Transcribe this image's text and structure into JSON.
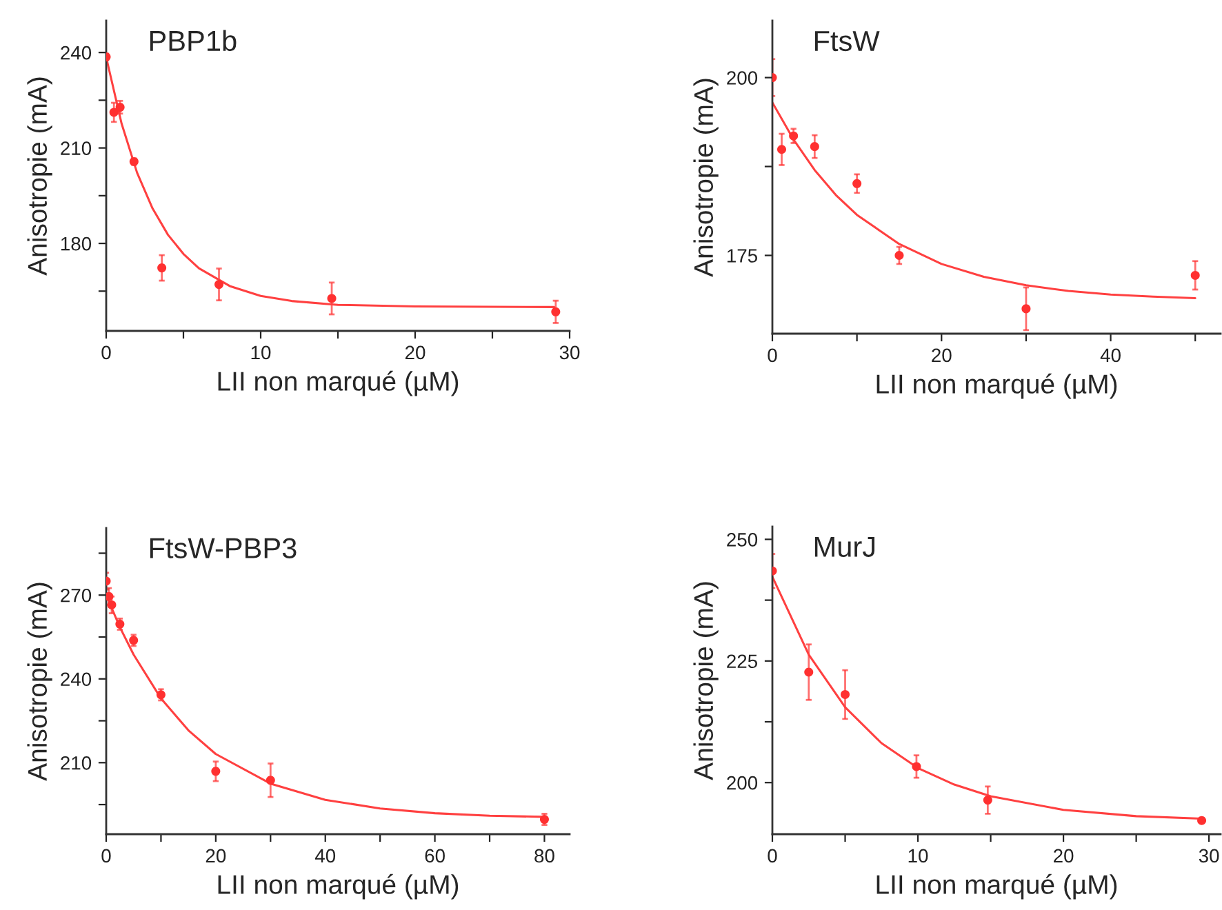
{
  "chart_data": [
    {
      "type": "scatter",
      "title": "PBP1b",
      "xlabel": "LII non marqué (µM)",
      "ylabel": "Anisotropie (mA)",
      "xlim": [
        0,
        30
      ],
      "xticks": [
        0,
        {
          "value": 5,
          "label": null
        },
        10,
        {
          "value": 15,
          "label": null
        },
        20,
        {
          "value": 25,
          "label": null
        },
        30
      ],
      "ylim": [
        152.5,
        250
      ],
      "yticks": [
        {
          "value": 165,
          "label": null
        },
        180,
        {
          "value": 195,
          "label": null
        },
        210,
        {
          "value": 225,
          "label": null
        },
        240
      ],
      "grid": false,
      "legend": false,
      "series": [
        {
          "color": "#ff3030",
          "marker": "circle",
          "x": [
            0,
            0.5,
            0.9,
            1.8,
            3.6,
            7.3,
            14.6,
            29.1
          ],
          "values": [
            238.6,
            221.2,
            222.8,
            205.7,
            172.3,
            167.1,
            162.7,
            158.5
          ],
          "errors": [
            1,
            3,
            2,
            1,
            4,
            5,
            5,
            3.5
          ]
        },
        {
          "type": "line",
          "color": "#ff4040",
          "marker": "none",
          "line_style": "solid",
          "x": [
            0,
            1,
            2,
            3,
            4,
            5,
            6,
            8,
            10,
            12,
            15,
            20,
            29
          ],
          "values": [
            238.5,
            217.6,
            202.2,
            191.0,
            182.7,
            176.7,
            172.2,
            166.6,
            163.5,
            161.9,
            160.7,
            160.2,
            160.0
          ]
        }
      ]
    },
    {
      "type": "scatter",
      "title": "FtsW",
      "xlabel": "LII non marqué (µM)",
      "ylabel": "Anisotropie (mA)",
      "xlim": [
        0,
        53
      ],
      "xticks": [
        0,
        {
          "value": 10,
          "label": null
        },
        20,
        {
          "value": 30,
          "label": null
        },
        40,
        {
          "value": 50,
          "label": null
        }
      ],
      "ylim": [
        164,
        208
      ],
      "yticks": [
        175,
        {
          "value": 187.5,
          "label": null
        },
        200
      ],
      "grid": false,
      "legend": false,
      "series": [
        {
          "color": "#ff3030",
          "marker": "circle",
          "x": [
            0,
            1.1,
            2.5,
            5,
            10,
            15,
            30,
            50
          ],
          "values": [
            200,
            189.9,
            191.8,
            190.3,
            185.1,
            175.0,
            167.5,
            172.2
          ],
          "errors": [
            2.6,
            2.2,
            1,
            1.6,
            1.3,
            1.2,
            3,
            2
          ]
        },
        {
          "type": "line",
          "color": "#ff4040",
          "marker": "none",
          "line_style": "solid",
          "x": [
            0,
            2.5,
            5,
            7.5,
            10,
            15,
            20,
            25,
            30,
            35,
            40,
            45,
            50
          ],
          "values": [
            196.5,
            191.3,
            187.0,
            183.5,
            180.7,
            176.6,
            173.8,
            172.0,
            170.8,
            170.0,
            169.5,
            169.2,
            169.0
          ]
        }
      ]
    },
    {
      "type": "scatter",
      "title": "FtsW-PBP3",
      "xlabel": "LII non marqué (µM)",
      "ylabel": "Anisotropie (mA)",
      "xlim": [
        0,
        84.6
      ],
      "xticks": [
        0,
        {
          "value": 10,
          "label": null
        },
        20,
        {
          "value": 30,
          "label": null
        },
        40,
        {
          "value": 50,
          "label": null
        },
        60,
        {
          "value": 70,
          "label": null
        },
        80
      ],
      "ylim": [
        184.4,
        294
      ],
      "yticks": [
        {
          "value": 195,
          "label": null
        },
        210,
        {
          "value": 225,
          "label": null
        },
        240,
        {
          "value": 255,
          "label": null
        },
        270,
        {
          "value": 285,
          "label": null
        }
      ],
      "grid": false,
      "legend": false,
      "series": [
        {
          "color": "#ff3030",
          "marker": "circle",
          "x": [
            0,
            0.5,
            1,
            2.5,
            5,
            10,
            20,
            30,
            80
          ],
          "values": [
            275.0,
            269.5,
            266.5,
            259.6,
            253.8,
            234.3,
            206.9,
            203.7,
            189.7
          ],
          "errors": [
            3,
            3,
            3,
            2,
            2,
            2,
            3.5,
            6,
            2
          ]
        },
        {
          "type": "line",
          "color": "#ff4040",
          "marker": "none",
          "line_style": "solid",
          "x": [
            0,
            2.5,
            5,
            10,
            15,
            20,
            30,
            40,
            50,
            60,
            70,
            80
          ],
          "values": [
            270,
            258.5,
            248.7,
            233.0,
            221.6,
            213.1,
            202.5,
            196.7,
            193.6,
            191.9,
            191.0,
            190.6
          ]
        }
      ]
    },
    {
      "type": "scatter",
      "title": "MurJ",
      "xlabel": "LII non marqué (µM)",
      "ylabel": "Anisotropie (mA)",
      "xlim": [
        0,
        30.8
      ],
      "xticks": [
        0,
        {
          "value": 5,
          "label": null
        },
        10,
        {
          "value": 15,
          "label": null
        },
        20,
        {
          "value": 25,
          "label": null
        },
        30
      ],
      "ylim": [
        189.4,
        252.6
      ],
      "yticks": [
        200,
        {
          "value": 212.5,
          "label": null
        },
        225,
        {
          "value": 237.5,
          "label": null
        },
        250
      ],
      "grid": false,
      "legend": false,
      "series": [
        {
          "color": "#ff3030",
          "marker": "circle",
          "x": [
            0,
            2.5,
            5,
            9.9,
            14.8,
            29.5
          ],
          "values": [
            243.5,
            222.7,
            218.1,
            203.3,
            196.4,
            192.2
          ],
          "errors": [
            3.5,
            5.7,
            5,
            2.3,
            2.8,
            0.5
          ]
        },
        {
          "type": "line",
          "color": "#ff4040",
          "marker": "none",
          "line_style": "solid",
          "x": [
            0,
            2.5,
            5,
            7.5,
            10,
            12.5,
            15,
            20,
            25,
            29.5
          ],
          "values": [
            242.3,
            226.3,
            215.5,
            208.1,
            203.0,
            199.6,
            197.2,
            194.4,
            193.1,
            192.6
          ]
        }
      ]
    }
  ]
}
